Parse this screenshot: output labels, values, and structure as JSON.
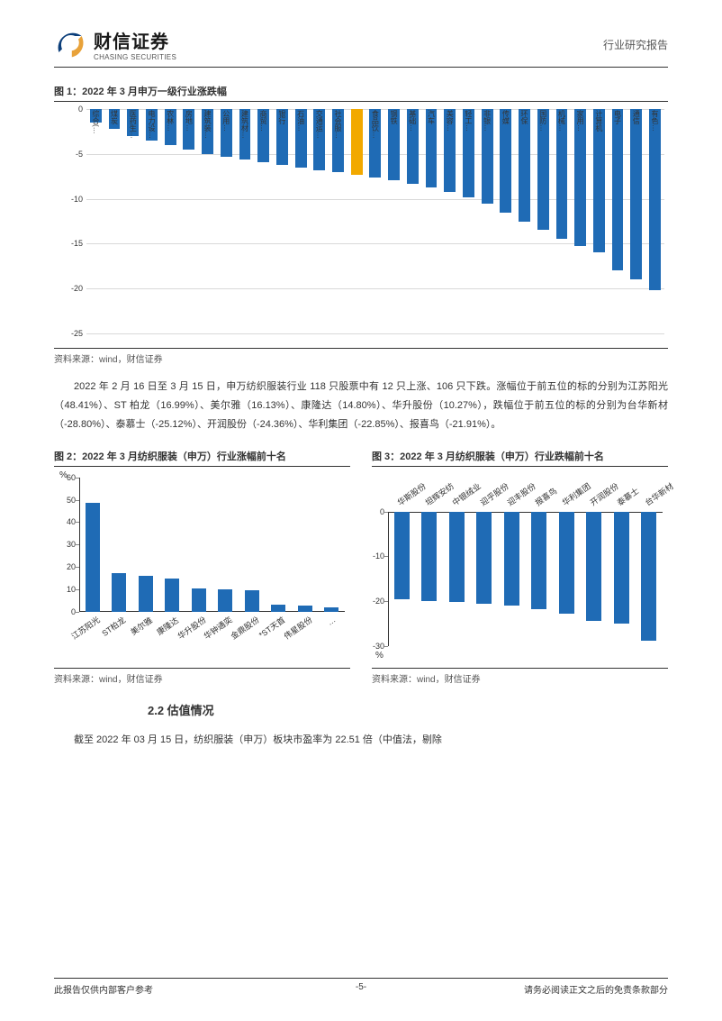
{
  "header": {
    "company_cn": "财信证券",
    "company_en": "CHASING SECURITIES",
    "doc_type": "行业研究报告"
  },
  "chart1": {
    "title": "图 1：2022 年 3 月申万一级行业涨跌幅",
    "source": "资料来源：wind，财信证券",
    "type": "bar",
    "ylim": [
      -25,
      0
    ],
    "ytick_step": 5,
    "yticks": [
      0,
      -5,
      -10,
      -15,
      -20,
      -25
    ],
    "bar_color": "#1f6bb5",
    "highlight_color": "#f2a900",
    "highlight_index": 14,
    "grid_color": "#d9d9d9",
    "background_color": "#ffffff",
    "categories": [
      "综合(…",
      "煤炭",
      "医药生…",
      "电力设…",
      "农林…",
      "房地…",
      "建筑装…",
      "公用…",
      "建筑材…",
      "商贸…",
      "银行",
      "石油…",
      "交通运…",
      "社会服…",
      "纺织服装(申万)",
      "食品饮…",
      "钢铁",
      "基础…",
      "汽车",
      "美容…",
      "轻工…",
      "非银…",
      "传媒",
      "环保",
      "国防…",
      "机械…",
      "家用…",
      "计算机",
      "电子",
      "通信",
      "有色…"
    ],
    "values": [
      -1.5,
      -2.2,
      -3.0,
      -3.5,
      -4.0,
      -4.5,
      -5.0,
      -5.3,
      -5.6,
      -5.9,
      -6.2,
      -6.5,
      -6.8,
      -7.0,
      -7.3,
      -7.6,
      -7.9,
      -8.3,
      -8.7,
      -9.2,
      -9.8,
      -10.5,
      -11.5,
      -12.5,
      -13.5,
      -14.5,
      -15.3,
      -16.0,
      -18.0,
      -19.0,
      -20.2
    ]
  },
  "body_text": "2022 年 2 月 16 日至 3 月 15 日，申万纺织服装行业 118 只股票中有 12 只上涨、106 只下跌。涨幅位于前五位的标的分别为江苏阳光（48.41%）、ST 柏龙（16.99%）、美尔雅（16.13%）、康隆达（14.80%）、华升股份（10.27%），跌幅位于前五位的标的分别为台华新材（-28.80%）、泰慕士（-25.12%）、开润股份（-24.36%）、华利集团（-22.85%）、报喜鸟（-21.91%）。",
  "chart2": {
    "title": "图 2：2022 年 3 月纺织服装（申万）行业涨幅前十名",
    "source": "资料来源：wind，财信证券",
    "type": "bar",
    "ylim": [
      0,
      60
    ],
    "yticks": [
      0,
      10,
      20,
      30,
      40,
      50,
      60
    ],
    "unit": "%",
    "bar_color": "#1f6bb5",
    "categories": [
      "江苏阳光",
      "ST柏龙",
      "美尔雅",
      "康隆达",
      "华升股份",
      "华钟通奕",
      "金鼎股份",
      "*ST天首",
      "伟星股份",
      "…"
    ],
    "values": [
      48.4,
      17.0,
      16.1,
      14.8,
      10.3,
      10.0,
      9.5,
      3.2,
      2.5,
      2.0
    ]
  },
  "chart3": {
    "title": "图 3：2022 年 3 月纺织服装（申万）行业跌幅前十名",
    "source": "资料来源：wind，财信证券",
    "type": "bar",
    "ylim": [
      -30,
      0
    ],
    "yticks": [
      0,
      -10,
      -20,
      -30
    ],
    "unit": "%",
    "bar_color": "#1f6bb5",
    "categories": [
      "华斯股份",
      "坦辉安纺",
      "中银绒业",
      "迎乎股份",
      "迎丰股份",
      "报喜鸟",
      "华利集团",
      "开润股份",
      "泰慕士",
      "台华新材"
    ],
    "values": [
      -19.5,
      -20.0,
      -20.3,
      -20.6,
      -21.0,
      -21.9,
      -22.9,
      -24.4,
      -25.1,
      -28.8
    ]
  },
  "section_heading": "2.2 估值情况",
  "trailing_text": "截至 2022 年 03 月 15 日，纺织服装（申万）板块市盈率为 22.51 倍（中值法，剔除",
  "footer": {
    "left": "此报告仅供内部客户参考",
    "center": "-5-",
    "right": "请务必阅读正文之后的免责条款部分"
  }
}
